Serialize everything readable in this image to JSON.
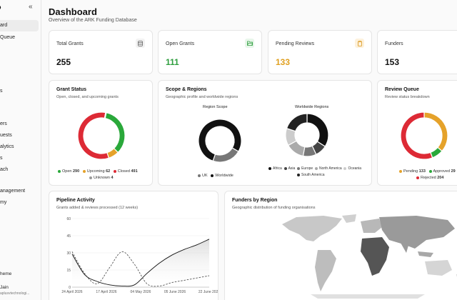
{
  "sidebar": {
    "brand": "o",
    "collapse_icon": "chevrons-left-icon",
    "items": [
      {
        "label": "ard",
        "active": true
      },
      {
        "label": "Queue",
        "active": false
      },
      {
        "label": "s",
        "active": false
      },
      {
        "label": "",
        "active": false
      },
      {
        "label": "ers",
        "active": false
      },
      {
        "label": "uests",
        "active": false
      },
      {
        "label": "alytics",
        "active": false
      },
      {
        "label": "s",
        "active": false
      },
      {
        "label": "ach",
        "active": false
      },
      {
        "label": "anagement",
        "active": false
      },
      {
        "label": "my",
        "active": false
      }
    ],
    "theme_label": "heme",
    "user_name": "Jain",
    "user_email": "aplusvtechnologi..."
  },
  "header": {
    "title": "Dashboard",
    "subtitle": "Overview of the ARK Funding Database"
  },
  "stats": [
    {
      "label": "Total Grants",
      "value": "255",
      "icon": "database-icon",
      "color": "#111111",
      "icon_bg": "#f2f2f2",
      "icon_color": "#666666"
    },
    {
      "label": "Open Grants",
      "value": "111",
      "icon": "folder-open-icon",
      "color": "#2e9e3e",
      "icon_bg": "#e8f6ea",
      "icon_color": "#2e9e3e"
    },
    {
      "label": "Pending Reviews",
      "value": "133",
      "icon": "clipboard-icon",
      "color": "#e0a020",
      "icon_bg": "#fdf1dc",
      "icon_color": "#d9971a"
    },
    {
      "label": "Funders",
      "value": "153",
      "icon": "",
      "color": "#111111",
      "icon_bg": "#ffffff",
      "icon_color": "#666666"
    }
  ],
  "grant_status": {
    "title": "Grant Status",
    "subtitle": "Open, closed, and upcoming grants",
    "legend": [
      {
        "label": "Open",
        "value": "290",
        "color": "#2aa83a"
      },
      {
        "label": "Upcoming",
        "value": "62",
        "color": "#e5a22a"
      },
      {
        "label": "Closed",
        "value": "491",
        "color": "#dd2a35"
      },
      {
        "label": "Unknown",
        "value": "4",
        "color": "#999999"
      }
    ]
  },
  "scope": {
    "title": "Scope & Regions",
    "subtitle": "Geographic profile and worldwide regions",
    "scope_title": "Region Scope",
    "scope_legend": [
      {
        "label": "UK",
        "color": "#777777"
      },
      {
        "label": "Worldwide",
        "color": "#111111"
      }
    ],
    "regions_title": "Worldwide Regions",
    "regions_legend": [
      {
        "label": "Africa",
        "color": "#111111"
      },
      {
        "label": "Asia",
        "color": "#444444"
      },
      {
        "label": "Europe",
        "color": "#777777"
      },
      {
        "label": "North America",
        "color": "#aaaaaa"
      },
      {
        "label": "Oceania",
        "color": "#cccccc"
      },
      {
        "label": "South America",
        "color": "#222222"
      }
    ]
  },
  "review_queue": {
    "title": "Review Queue",
    "subtitle": "Review status breakdown",
    "legend": [
      {
        "label": "Pending",
        "value": "133",
        "color": "#e5a22a"
      },
      {
        "label": "Approved",
        "value": "29",
        "color": "#2aa83a"
      },
      {
        "label": "Rejected",
        "value": "204",
        "color": "#dd2a35"
      }
    ]
  },
  "pipeline": {
    "title": "Pipeline Activity",
    "subtitle": "Grants added & reviews processed (12 weeks)"
  },
  "funders_region": {
    "title": "Funders by Region",
    "subtitle": "Geographic distribution of funding organisations"
  },
  "chart_data": [
    {
      "type": "pie",
      "title": "Grant Status",
      "labels": [
        "Open",
        "Upcoming",
        "Closed",
        "Unknown"
      ],
      "values": [
        290,
        62,
        491,
        4
      ],
      "colors": [
        "#2aa83a",
        "#e5a22a",
        "#dd2a35",
        "#999999"
      ]
    },
    {
      "type": "pie",
      "title": "Region Scope",
      "labels": [
        "UK",
        "Worldwide"
      ],
      "values": [
        22,
        78
      ],
      "colors": [
        "#777777",
        "#111111"
      ]
    },
    {
      "type": "pie",
      "title": "Worldwide Regions",
      "labels": [
        "Africa",
        "Asia",
        "Europe",
        "North America",
        "Oceania",
        "South America"
      ],
      "values": [
        34,
        9,
        10,
        14,
        13,
        20
      ],
      "colors": [
        "#111111",
        "#444444",
        "#777777",
        "#aaaaaa",
        "#cccccc",
        "#222222"
      ]
    },
    {
      "type": "pie",
      "title": "Review Queue",
      "labels": [
        "Pending",
        "Approved",
        "Rejected"
      ],
      "values": [
        133,
        29,
        204
      ],
      "colors": [
        "#e5a22a",
        "#2aa83a",
        "#dd2a35"
      ]
    },
    {
      "type": "area",
      "title": "Pipeline Activity",
      "x_ticks": [
        "24 April 2026",
        "17 April 2026",
        "04 May 2026",
        "05 June 2026",
        "22 June 2026"
      ],
      "y_ticks": [
        0,
        15,
        30,
        45,
        60
      ],
      "ylim": [
        0,
        60
      ],
      "x": [
        0,
        1,
        2,
        3,
        4,
        5,
        6,
        7,
        8,
        9,
        10,
        11
      ],
      "series": [
        {
          "values": [
            29,
            11,
            5,
            2,
            1,
            2,
            12,
            21,
            28,
            33,
            37,
            42
          ],
          "color": "#111111",
          "style": "solid"
        },
        {
          "values": [
            31,
            12,
            3,
            17,
            31,
            20,
            3,
            1,
            4,
            6,
            8,
            10
          ],
          "color": "#555555",
          "style": "dashed"
        }
      ]
    }
  ]
}
